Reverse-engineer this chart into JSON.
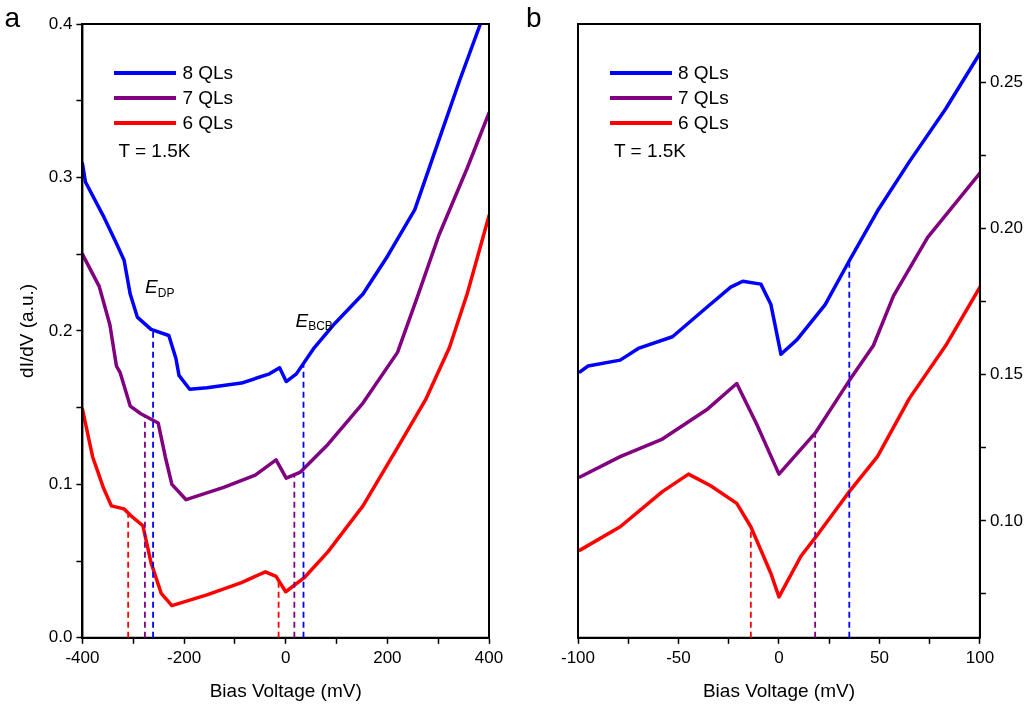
{
  "chart_data": [
    {
      "type": "line",
      "title": "a",
      "xlabel": "Bias Voltage (mV)",
      "ylabel": "dI/dV (a.u.)",
      "xlim": [
        -400,
        400
      ],
      "ylim": [
        0,
        0.4
      ],
      "xticks": [
        -400,
        {
          "value": -300,
          "label": null
        },
        -200,
        {
          "value": -100,
          "label": null
        },
        0,
        {
          "value": 100,
          "label": null
        },
        200,
        {
          "value": 300,
          "label": null
        },
        400
      ],
      "yticks": [
        {
          "value": 0,
          "label": "0.0"
        },
        {
          "value": 0.05,
          "label": null
        },
        0.1,
        {
          "value": 0.15,
          "label": null
        },
        0.2,
        {
          "value": 0.25,
          "label": null
        },
        0.3,
        {
          "value": 0.35,
          "label": null
        },
        0.4
      ],
      "legend": "top left",
      "marker": "none",
      "line_style": "solid",
      "series": [
        {
          "name": "8 QLs",
          "color": "#0000ff",
          "x": [
            -400,
            -394,
            -359,
            -333,
            -318,
            -306,
            -292,
            -265,
            -230,
            -216,
            -210,
            -189,
            -155,
            -87,
            -32,
            -12,
            1,
            21,
            56,
            97,
            152,
            199,
            254,
            301,
            342,
            383
          ],
          "values": [
            0.309,
            0.297,
            0.275,
            0.257,
            0.246,
            0.224,
            0.209,
            0.201,
            0.197,
            0.182,
            0.171,
            0.162,
            0.163,
            0.166,
            0.172,
            0.176,
            0.167,
            0.172,
            0.189,
            0.205,
            0.224,
            0.248,
            0.279,
            0.324,
            0.363,
            0.4
          ]
        },
        {
          "name": "7 QLs",
          "color": "#800080",
          "x": [
            -400,
            -367,
            -346,
            -333,
            -326,
            -306,
            -285,
            -251,
            -237,
            -224,
            -196,
            -122,
            -60,
            -19,
            1,
            29,
            83,
            152,
            220,
            261,
            301,
            357,
            400
          ],
          "values": [
            0.25,
            0.229,
            0.204,
            0.177,
            0.173,
            0.151,
            0.146,
            0.14,
            0.118,
            0.1,
            0.09,
            0.098,
            0.106,
            0.116,
            0.104,
            0.108,
            0.126,
            0.153,
            0.186,
            0.224,
            0.262,
            0.306,
            0.342
          ]
        },
        {
          "name": "6 QLs",
          "color": "#ff0000",
          "x": [
            -400,
            -380,
            -359,
            -343,
            -318,
            -306,
            -281,
            -265,
            -245,
            -224,
            -155,
            -87,
            -40,
            -19,
            0,
            36,
            83,
            152,
            220,
            275,
            322,
            357,
            400
          ],
          "values": [
            0.149,
            0.118,
            0.098,
            0.086,
            0.084,
            0.08,
            0.073,
            0.049,
            0.029,
            0.021,
            0.028,
            0.036,
            0.043,
            0.04,
            0.03,
            0.039,
            0.056,
            0.086,
            0.124,
            0.155,
            0.189,
            0.224,
            0.275
          ]
        }
      ],
      "ref_lines": [
        {
          "axis": "x",
          "value": -310,
          "color": "#ff0000",
          "line_style": "dashed"
        },
        {
          "axis": "x",
          "value": -14,
          "color": "#ff0000",
          "line_style": "dashed"
        },
        {
          "axis": "x",
          "value": -277,
          "color": "#800080",
          "line_style": "dashed"
        },
        {
          "axis": "x",
          "value": 17,
          "color": "#800080",
          "line_style": "dashed"
        },
        {
          "axis": "x",
          "value": -261,
          "color": "#0000ff",
          "line_style": "dashed",
          "label": "E$_{DP}$"
        },
        {
          "axis": "x",
          "value": 35,
          "color": "#0000ff",
          "line_style": "dashed",
          "label": "E$_{BCB}$"
        }
      ],
      "annotations": [
        "T = 1.5K"
      ]
    },
    {
      "type": "line",
      "title": "b",
      "xlabel": "Bias Voltage (mV)",
      "xlim": [
        -100,
        100
      ],
      "y2lim": [
        0.06,
        0.27
      ],
      "xticks": [
        -100,
        {
          "value": -75,
          "label": null
        },
        -50,
        {
          "value": -25,
          "label": null
        },
        0,
        {
          "value": 25,
          "label": null
        },
        50,
        {
          "value": 75,
          "label": null
        },
        100
      ],
      "y2ticks": [
        {
          "value": 0.075,
          "label": null
        },
        {
          "value": 0.1,
          "label": "0.10"
        },
        {
          "value": 0.125,
          "label": null
        },
        0.15,
        {
          "value": 0.175,
          "label": null
        },
        {
          "value": 0.2,
          "label": "0.20"
        },
        {
          "value": 0.225,
          "label": null
        },
        0.25
      ],
      "legend": "top left",
      "marker": "none",
      "line_style": "solid",
      "series": [
        {
          "name": "8 QLs",
          "color": "#0000ff",
          "axis": "y2",
          "x": [
            -99,
            -95,
            -79,
            -70,
            -53,
            -36,
            -24,
            -18,
            -9,
            -4,
            1,
            9,
            23,
            35,
            49,
            65,
            83,
            100
          ],
          "values": [
            0.151,
            0.153,
            0.155,
            0.159,
            0.163,
            0.173,
            0.18,
            0.182,
            0.181,
            0.174,
            0.157,
            0.162,
            0.174,
            0.189,
            0.206,
            0.223,
            0.241,
            0.26
          ]
        },
        {
          "name": "7 QLs",
          "color": "#800080",
          "axis": "y2",
          "x": [
            -99,
            -79,
            -58,
            -36,
            -21,
            -11,
            0,
            18,
            35,
            47,
            57,
            74,
            100
          ],
          "values": [
            0.115,
            0.122,
            0.128,
            0.138,
            0.147,
            0.133,
            0.116,
            0.13,
            0.148,
            0.16,
            0.177,
            0.197,
            0.219
          ]
        },
        {
          "name": "6 QLs",
          "color": "#ff0000",
          "axis": "y2",
          "x": [
            -99,
            -79,
            -58,
            -45,
            -34,
            -21,
            -14,
            -4,
            0,
            11,
            20,
            35,
            49,
            65,
            83,
            100
          ],
          "values": [
            0.09,
            0.098,
            0.11,
            0.116,
            0.112,
            0.106,
            0.098,
            0.082,
            0.074,
            0.088,
            0.096,
            0.11,
            0.122,
            0.142,
            0.16,
            0.18
          ]
        }
      ],
      "ref_lines": [
        {
          "axis": "x",
          "value": -14,
          "color": "#ff0000",
          "line_style": "dashed"
        },
        {
          "axis": "x",
          "value": 18,
          "color": "#800080",
          "line_style": "dashed"
        },
        {
          "axis": "x",
          "value": 35,
          "color": "#0000ff",
          "line_style": "dashed"
        }
      ],
      "annotations": [
        "T = 1.5K"
      ]
    }
  ]
}
